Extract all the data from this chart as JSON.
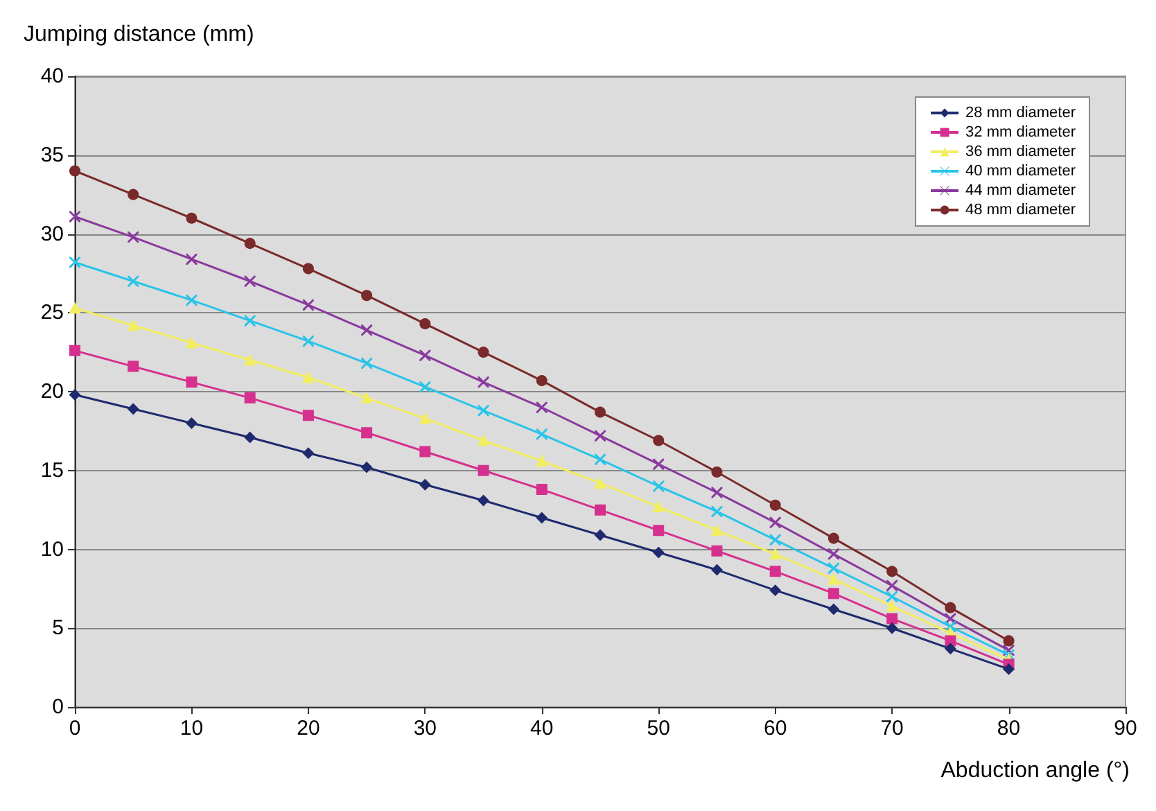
{
  "chart_data": {
    "type": "line",
    "ylabel": "Jumping distance (mm)",
    "xlabel": "Abduction angle (°)",
    "x": [
      0,
      5,
      10,
      15,
      20,
      25,
      30,
      35,
      40,
      45,
      50,
      55,
      60,
      65,
      70,
      75,
      80
    ],
    "xlim": [
      0,
      90
    ],
    "xticks": [
      0,
      10,
      20,
      30,
      40,
      50,
      60,
      70,
      80,
      90
    ],
    "ylim": [
      0,
      40
    ],
    "yticks": [
      0,
      5,
      10,
      15,
      20,
      25,
      30,
      35,
      40
    ],
    "grid": "y",
    "legend": "top right",
    "line_style": "solid",
    "series": [
      {
        "name": "28 mm diameter",
        "color": "#1f2a6e",
        "marker": "diamond",
        "values": [
          19.8,
          18.9,
          18.0,
          17.1,
          16.1,
          15.2,
          14.1,
          13.1,
          12.0,
          10.9,
          9.8,
          8.7,
          7.4,
          6.2,
          5.0,
          3.7,
          2.4
        ]
      },
      {
        "name": "32 mm diameter",
        "color": "#d6308f",
        "marker": "square",
        "values": [
          22.6,
          21.6,
          20.6,
          19.6,
          18.5,
          17.4,
          16.2,
          15.0,
          13.8,
          12.5,
          11.2,
          9.9,
          8.6,
          7.2,
          5.6,
          4.2,
          2.7
        ]
      },
      {
        "name": "36 mm diameter",
        "color": "#f2ee60",
        "marker": "triangle",
        "values": [
          25.3,
          24.2,
          23.1,
          22.0,
          20.9,
          19.6,
          18.3,
          16.9,
          15.6,
          14.2,
          12.7,
          11.2,
          9.7,
          8.1,
          6.4,
          4.7,
          3.0
        ]
      },
      {
        "name": "40 mm diameter",
        "color": "#29c4e8",
        "marker": "cross",
        "values": [
          28.2,
          27.0,
          25.8,
          24.5,
          23.2,
          21.8,
          20.3,
          18.8,
          17.3,
          15.7,
          14.0,
          12.4,
          10.6,
          8.8,
          7.0,
          5.1,
          3.3
        ]
      },
      {
        "name": "44 mm diameter",
        "color": "#8a3a9e",
        "marker": "cross",
        "values": [
          31.1,
          29.8,
          28.4,
          27.0,
          25.5,
          23.9,
          22.3,
          20.6,
          19.0,
          17.2,
          15.4,
          13.6,
          11.7,
          9.7,
          7.7,
          5.6,
          3.6
        ]
      },
      {
        "name": "48 mm diameter",
        "color": "#7a2a2a",
        "marker": "circle",
        "values": [
          34.0,
          32.5,
          31.0,
          29.4,
          27.8,
          26.1,
          24.3,
          22.5,
          20.7,
          18.7,
          16.9,
          14.9,
          12.8,
          10.7,
          8.6,
          6.3,
          4.2
        ]
      }
    ]
  }
}
